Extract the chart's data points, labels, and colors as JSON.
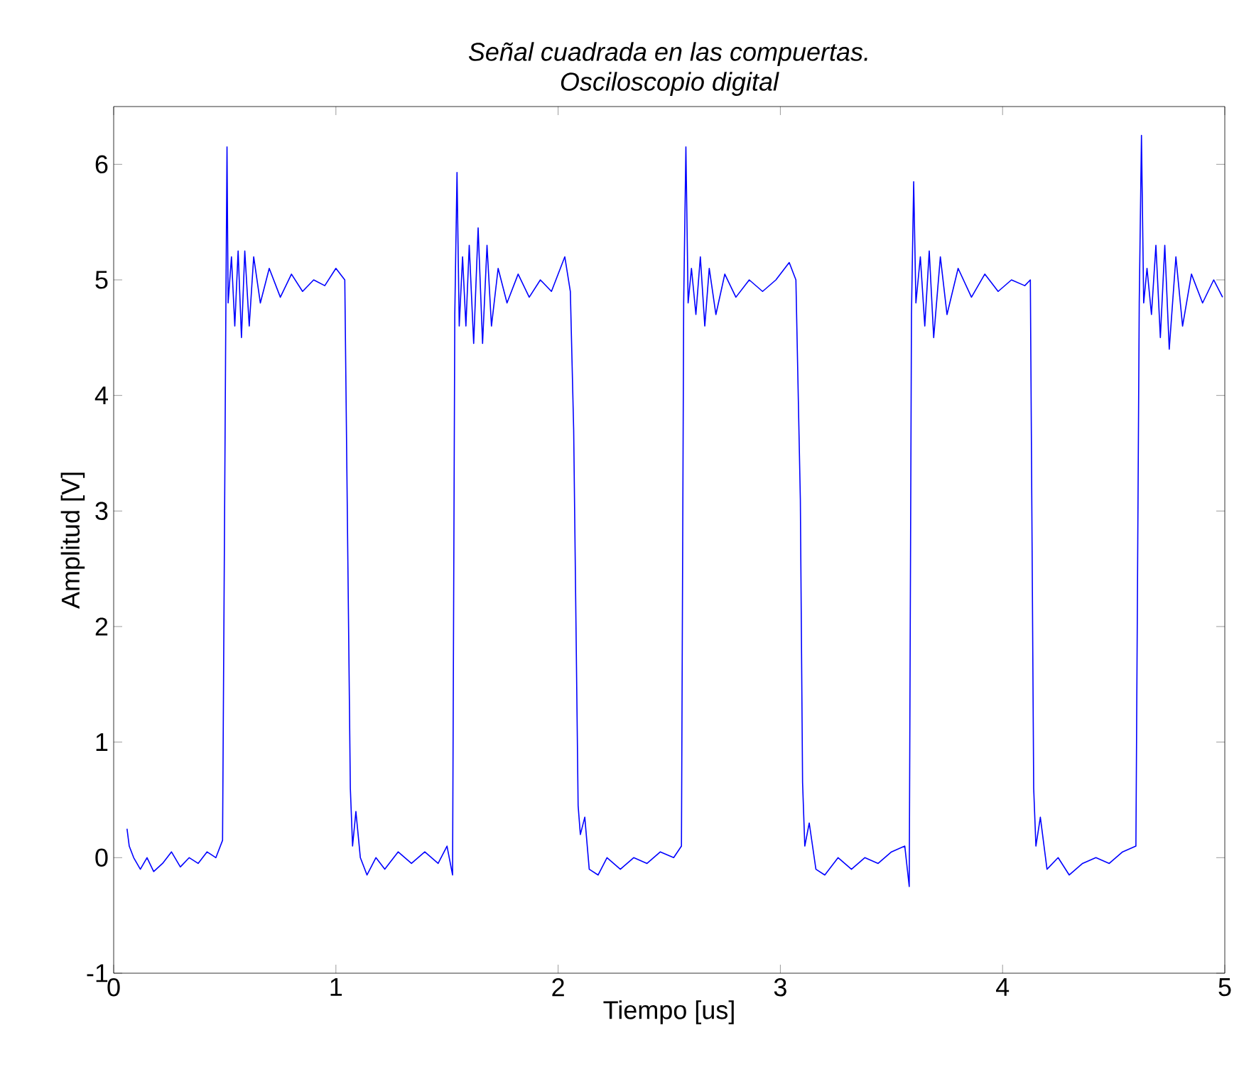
{
  "chart_data": {
    "type": "line",
    "title": "Señal cuadrada en las compuertas.",
    "subtitle": "Osciloscopio digital",
    "xlabel": "Tiempo [us]",
    "ylabel": "Amplitud [V]",
    "xlim": [
      0,
      5
    ],
    "ylim": [
      -1,
      6.5
    ],
    "xticks": [
      0,
      1,
      2,
      3,
      4,
      5
    ],
    "yticks": [
      -1,
      0,
      1,
      2,
      3,
      4,
      5,
      6
    ],
    "grid": false,
    "marker": "none",
    "line_style": "solid",
    "series": [
      {
        "color": "#0000ff",
        "x": [
          0.06,
          0.07,
          0.09,
          0.12,
          0.15,
          0.18,
          0.22,
          0.26,
          0.3,
          0.34,
          0.38,
          0.42,
          0.46,
          0.49,
          0.505,
          0.51,
          0.515,
          0.53,
          0.545,
          0.56,
          0.575,
          0.59,
          0.61,
          0.63,
          0.66,
          0.7,
          0.75,
          0.8,
          0.85,
          0.9,
          0.95,
          1.0,
          1.04,
          1.065,
          1.075,
          1.09,
          1.11,
          1.14,
          1.18,
          1.22,
          1.28,
          1.34,
          1.4,
          1.46,
          1.5,
          1.525,
          1.535,
          1.545,
          1.555,
          1.57,
          1.585,
          1.6,
          1.62,
          1.64,
          1.66,
          1.68,
          1.7,
          1.73,
          1.77,
          1.82,
          1.87,
          1.92,
          1.97,
          2.03,
          2.055,
          2.07,
          2.09,
          2.1,
          2.12,
          2.14,
          2.18,
          2.22,
          2.28,
          2.34,
          2.4,
          2.46,
          2.52,
          2.555,
          2.565,
          2.575,
          2.585,
          2.6,
          2.62,
          2.64,
          2.66,
          2.68,
          2.71,
          2.75,
          2.8,
          2.86,
          2.92,
          2.98,
          3.04,
          3.07,
          3.09,
          3.1,
          3.11,
          3.13,
          3.16,
          3.2,
          3.26,
          3.32,
          3.38,
          3.44,
          3.5,
          3.56,
          3.58,
          3.59,
          3.6,
          3.61,
          3.63,
          3.65,
          3.67,
          3.69,
          3.72,
          3.75,
          3.8,
          3.86,
          3.92,
          3.98,
          4.04,
          4.1,
          4.125,
          4.14,
          4.15,
          4.17,
          4.2,
          4.25,
          4.3,
          4.36,
          4.42,
          4.48,
          4.54,
          4.6,
          4.615,
          4.625,
          4.635,
          4.65,
          4.67,
          4.69,
          4.71,
          4.73,
          4.75,
          4.78,
          4.81,
          4.85,
          4.9,
          4.95,
          4.99
        ],
        "values": [
          0.25,
          0.1,
          0.0,
          -0.1,
          0.0,
          -0.12,
          -0.05,
          0.05,
          -0.08,
          0.0,
          -0.05,
          0.05,
          0.0,
          0.15,
          4.8,
          6.15,
          4.8,
          5.2,
          4.6,
          5.25,
          4.5,
          5.25,
          4.6,
          5.2,
          4.8,
          5.1,
          4.85,
          5.05,
          4.9,
          5.0,
          4.95,
          5.1,
          5.0,
          0.6,
          0.1,
          0.4,
          0.0,
          -0.15,
          0.0,
          -0.1,
          0.05,
          -0.05,
          0.05,
          -0.05,
          0.1,
          -0.15,
          4.7,
          5.93,
          4.6,
          5.2,
          4.6,
          5.3,
          4.45,
          5.45,
          4.45,
          5.3,
          4.6,
          5.1,
          4.8,
          5.05,
          4.85,
          5.0,
          4.9,
          5.2,
          4.9,
          3.7,
          0.45,
          0.2,
          0.35,
          -0.1,
          -0.15,
          0.0,
          -0.1,
          0.0,
          -0.05,
          0.05,
          0.0,
          0.1,
          4.8,
          6.15,
          4.8,
          5.1,
          4.7,
          5.2,
          4.6,
          5.1,
          4.7,
          5.05,
          4.85,
          5.0,
          4.9,
          5.0,
          5.15,
          5.0,
          3.1,
          0.65,
          0.1,
          0.3,
          -0.1,
          -0.15,
          0.0,
          -0.1,
          0.0,
          -0.05,
          0.05,
          0.1,
          -0.25,
          4.7,
          5.85,
          4.8,
          5.2,
          4.6,
          5.25,
          4.5,
          5.2,
          4.7,
          5.1,
          4.85,
          5.05,
          4.9,
          5.0,
          4.95,
          5.0,
          0.6,
          0.1,
          0.35,
          -0.1,
          0.0,
          -0.15,
          -0.05,
          0.0,
          -0.05,
          0.05,
          0.1,
          4.8,
          6.25,
          4.8,
          5.1,
          4.7,
          5.3,
          4.5,
          5.3,
          4.4,
          5.2,
          4.6,
          5.05,
          4.8,
          5.0,
          4.85
        ]
      }
    ]
  }
}
